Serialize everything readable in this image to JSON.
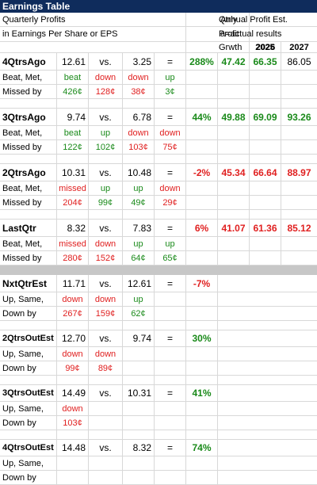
{
  "title": "Earnings Table",
  "header": {
    "line1_left": "Quarterly Profits",
    "line2_left": "in Earnings Per Share or EPS",
    "qtrly": "Qtrly",
    "profit": "Profit",
    "grwth": "Grwth",
    "annual": "Annual Profit Est.",
    "actual": "a=actual results",
    "y2025": "2025",
    "y2026": "2026",
    "y2027": "2027"
  },
  "vs": "vs.",
  "eq": "=",
  "lbl_beat": "Beat, Met,",
  "lbl_missed": "Missed by",
  "lbl_up": "Up, Same,",
  "lbl_down": "Down by",
  "q4": {
    "name": "4QtrsAgo",
    "v1": "12.61",
    "v2": "3.25",
    "growth": "288%",
    "e1": "47.42",
    "e2": "66.35",
    "e3": "86.05",
    "s1": "beat",
    "s2": "down",
    "s3": "down",
    "s4": "up",
    "m1": "426¢",
    "m2": "128¢",
    "m3": "38¢",
    "m4": "3¢"
  },
  "q3": {
    "name": "3QtrsAgo",
    "v1": "9.74",
    "v2": "6.78",
    "growth": "44%",
    "e1": "49.88",
    "e2": "69.09",
    "e3": "93.26",
    "s1": "beat",
    "s2": "up",
    "s3": "down",
    "s4": "down",
    "m1": "122¢",
    "m2": "102¢",
    "m3": "103¢",
    "m4": "75¢"
  },
  "q2": {
    "name": "2QtrsAgo",
    "v1": "10.31",
    "v2": "10.48",
    "growth": "-2%",
    "e1": "45.34",
    "e2": "66.64",
    "e3": "88.97",
    "s1": "missed",
    "s2": "up",
    "s3": "up",
    "s4": "down",
    "m1": "204¢",
    "m2": "99¢",
    "m3": "49¢",
    "m4": "29¢"
  },
  "q1": {
    "name": "LastQtr",
    "v1": "8.32",
    "v2": "7.83",
    "growth": "6%",
    "e1": "41.07",
    "e2": "61.36",
    "e3": "85.12",
    "s1": "missed",
    "s2": "down",
    "s3": "up",
    "s4": "up",
    "m1": "280¢",
    "m2": "152¢",
    "m3": "64¢",
    "m4": "65¢"
  },
  "n1": {
    "name": "NxtQtrEst",
    "v1": "11.71",
    "v2": "12.61",
    "growth": "-7%",
    "s1": "down",
    "s2": "down",
    "s3": "up",
    "m1": "267¢",
    "m2": "159¢",
    "m3": "62¢"
  },
  "n2": {
    "name": "2QtrsOutEst",
    "v1": "12.70",
    "v2": "9.74",
    "growth": "30%",
    "s1": "down",
    "s2": "down",
    "m1": "99¢",
    "m2": "89¢"
  },
  "n3": {
    "name": "3QtrsOutEst",
    "v1": "14.49",
    "v2": "10.31",
    "growth": "41%",
    "s1": "down",
    "m1": "103¢"
  },
  "n4": {
    "name": "4QtrsOutEst",
    "v1": "14.48",
    "v2": "8.32",
    "growth": "74%"
  },
  "colors": {
    "title_bg": "#0f2c5c",
    "green": "#1a8a1a",
    "red": "#e02020",
    "separator": "#c7c7c7"
  }
}
